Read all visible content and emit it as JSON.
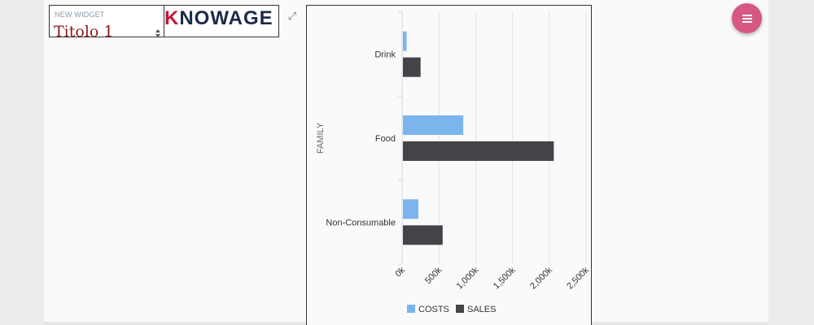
{
  "text_widget": {
    "caption": "NEW WIDGET",
    "title": "Titolo 1"
  },
  "logo_widget": {
    "logo_k": "K",
    "logo_rest": "NOWAGE"
  },
  "expand_icon": "⤢",
  "fab": {
    "icon": "menu-icon",
    "color": "#d4587f"
  },
  "chart_data": {
    "type": "bar",
    "orientation": "horizontal",
    "categories": [
      "Drink",
      "Food",
      "Non-Consumable"
    ],
    "series": [
      {
        "name": "COSTS",
        "color": "#7cb5ec",
        "values": [
          50000,
          820000,
          210000
        ]
      },
      {
        "name": "SALES",
        "color": "#434348",
        "values": [
          240000,
          2050000,
          540000
        ]
      }
    ],
    "ylabel": "FAMILY",
    "xlim": [
      0,
      2500000
    ],
    "xticks": [
      {
        "value": 0,
        "label": "0k"
      },
      {
        "value": 500000,
        "label": "500k"
      },
      {
        "value": 1000000,
        "label": "1,000k"
      },
      {
        "value": 1500000,
        "label": "1,500k"
      },
      {
        "value": 2000000,
        "label": "2,000k"
      },
      {
        "value": 2500000,
        "label": "2,500k"
      }
    ],
    "grid": true,
    "legend": "bottom-center"
  }
}
